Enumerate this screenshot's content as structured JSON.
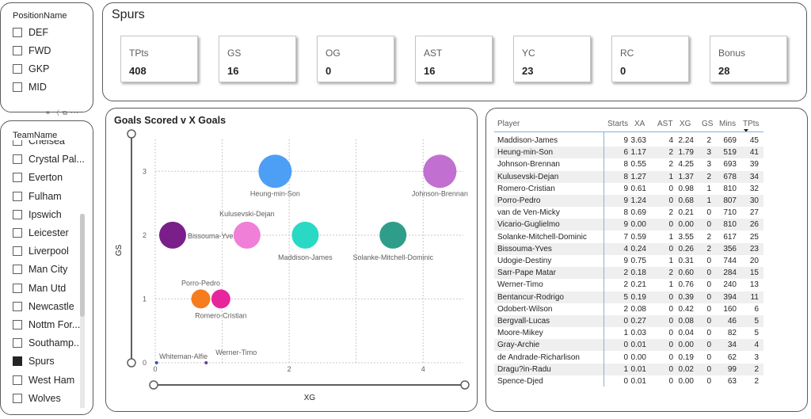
{
  "position_slicer": {
    "title": "PositionName",
    "items": [
      {
        "label": "DEF",
        "checked": false
      },
      {
        "label": "FWD",
        "checked": false
      },
      {
        "label": "GKP",
        "checked": false
      },
      {
        "label": "MID",
        "checked": false
      }
    ]
  },
  "team_slicer": {
    "title": "TeamName",
    "items": [
      {
        "label": "Chelsea",
        "checked": false
      },
      {
        "label": "Crystal Pal...",
        "checked": false
      },
      {
        "label": "Everton",
        "checked": false
      },
      {
        "label": "Fulham",
        "checked": false
      },
      {
        "label": "Ipswich",
        "checked": false
      },
      {
        "label": "Leicester",
        "checked": false
      },
      {
        "label": "Liverpool",
        "checked": false
      },
      {
        "label": "Man City",
        "checked": false
      },
      {
        "label": "Man Utd",
        "checked": false
      },
      {
        "label": "Newcastle",
        "checked": false
      },
      {
        "label": "Nottm For...",
        "checked": false
      },
      {
        "label": "Southamp...",
        "checked": false
      },
      {
        "label": "Spurs",
        "checked": true
      },
      {
        "label": "West Ham",
        "checked": false
      },
      {
        "label": "Wolves",
        "checked": false
      }
    ]
  },
  "header": {
    "title": "Spurs",
    "kpis": [
      {
        "label": "TPts",
        "value": "408"
      },
      {
        "label": "GS",
        "value": "16"
      },
      {
        "label": "OG",
        "value": "0"
      },
      {
        "label": "AST",
        "value": "16"
      },
      {
        "label": "YC",
        "value": "23"
      },
      {
        "label": "RC",
        "value": "0"
      },
      {
        "label": "Bonus",
        "value": "28"
      }
    ]
  },
  "chart_data": {
    "type": "scatter",
    "title": "Goals Scored v X Goals",
    "xlabel": "XG",
    "ylabel": "GS",
    "xlim": [
      0,
      4.6
    ],
    "ylim": [
      0,
      3.5
    ],
    "x_ticks": [
      "0",
      "2",
      "4"
    ],
    "y_ticks": [
      "0",
      "1",
      "2",
      "3"
    ],
    "grid": true,
    "points": [
      {
        "name": "Heung-min-Son",
        "x": 1.79,
        "y": 3,
        "color": "#4d9ff5"
      },
      {
        "name": "Johnson-Brennan",
        "x": 4.25,
        "y": 3,
        "color": "#c16fd1"
      },
      {
        "name": "Bissouma-Yves",
        "x": 0.26,
        "y": 2,
        "color": "#7a1e8a"
      },
      {
        "name": "Kulusevski-Dejan",
        "x": 1.37,
        "y": 2,
        "color": "#f07fd8"
      },
      {
        "name": "Maddison-James",
        "x": 2.24,
        "y": 2,
        "color": "#2ad9c4"
      },
      {
        "name": "Solanke-Mitchell-Dominic",
        "x": 3.55,
        "y": 2,
        "color": "#2e9e8a"
      },
      {
        "name": "Porro-Pedro",
        "x": 0.68,
        "y": 1,
        "color": "#f57c1f"
      },
      {
        "name": "Romero-Cristian",
        "x": 0.98,
        "y": 1,
        "color": "#e8269b"
      },
      {
        "name": "Whiteman-Alfie",
        "x": 0.02,
        "y": 0,
        "color": "#3f51b5"
      },
      {
        "name": "Werner-Timo",
        "x": 0.76,
        "y": 0,
        "color": "#6a3d9a"
      }
    ]
  },
  "table": {
    "columns": [
      "Player",
      "Starts",
      "XA",
      "AST",
      "XG",
      "GS",
      "Mins",
      "TPts"
    ],
    "rows": [
      [
        "Maddison-James",
        "9",
        "3.63",
        "4",
        "2.24",
        "2",
        "669",
        "45"
      ],
      [
        "Heung-min-Son",
        "6",
        "1.17",
        "2",
        "1.79",
        "3",
        "519",
        "41"
      ],
      [
        "Johnson-Brennan",
        "8",
        "0.55",
        "2",
        "4.25",
        "3",
        "693",
        "39"
      ],
      [
        "Kulusevski-Dejan",
        "8",
        "1.27",
        "1",
        "1.37",
        "2",
        "678",
        "34"
      ],
      [
        "Romero-Cristian",
        "9",
        "0.61",
        "0",
        "0.98",
        "1",
        "810",
        "32"
      ],
      [
        "Porro-Pedro",
        "9",
        "1.24",
        "0",
        "0.68",
        "1",
        "807",
        "30"
      ],
      [
        "van de Ven-Micky",
        "8",
        "0.69",
        "2",
        "0.21",
        "0",
        "710",
        "27"
      ],
      [
        "Vicario-Guglielmo",
        "9",
        "0.00",
        "0",
        "0.00",
        "0",
        "810",
        "26"
      ],
      [
        "Solanke-Mitchell-Dominic",
        "7",
        "0.59",
        "1",
        "3.55",
        "2",
        "617",
        "25"
      ],
      [
        "Bissouma-Yves",
        "4",
        "0.24",
        "0",
        "0.26",
        "2",
        "356",
        "23"
      ],
      [
        "Udogie-Destiny",
        "9",
        "0.75",
        "1",
        "0.31",
        "0",
        "744",
        "20"
      ],
      [
        "Sarr-Pape Matar",
        "2",
        "0.18",
        "2",
        "0.60",
        "0",
        "284",
        "15"
      ],
      [
        "Werner-Timo",
        "2",
        "0.21",
        "1",
        "0.76",
        "0",
        "240",
        "13"
      ],
      [
        "Bentancur-Rodrigo",
        "5",
        "0.19",
        "0",
        "0.39",
        "0",
        "394",
        "11"
      ],
      [
        "Odobert-Wilson",
        "2",
        "0.08",
        "0",
        "0.42",
        "0",
        "160",
        "6"
      ],
      [
        "Bergvall-Lucas",
        "0",
        "0.27",
        "0",
        "0.08",
        "0",
        "46",
        "5"
      ],
      [
        "Moore-Mikey",
        "1",
        "0.03",
        "0",
        "0.04",
        "0",
        "82",
        "5"
      ],
      [
        "Gray-Archie",
        "0",
        "0.01",
        "0",
        "0.00",
        "0",
        "34",
        "4"
      ],
      [
        "de Andrade-Richarlison",
        "0",
        "0.00",
        "0",
        "0.19",
        "0",
        "62",
        "3"
      ],
      [
        "Dragu?in-Radu",
        "1",
        "0.01",
        "0",
        "0.02",
        "0",
        "99",
        "2"
      ],
      [
        "Spence-Djed",
        "0",
        "0.01",
        "0",
        "0.00",
        "0",
        "63",
        "2"
      ]
    ]
  }
}
